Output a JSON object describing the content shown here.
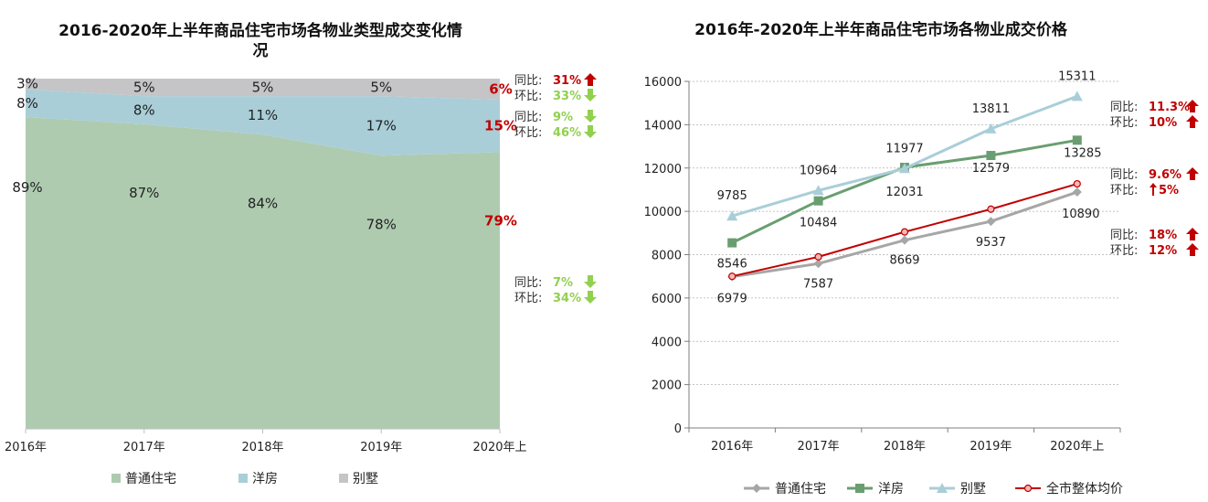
{
  "chart_data": [
    {
      "type": "area",
      "title_line1": "2016-2020年上半年商品住宅市场各物业类型成交变化情",
      "title_line2": "况",
      "categories": [
        "2016年",
        "2017年",
        "2018年",
        "2019年",
        "2020年上"
      ],
      "ylim": [
        0,
        100
      ],
      "series": [
        {
          "name": "普通住宅",
          "values": [
            89,
            87,
            84,
            78,
            79
          ],
          "color": "#aecbb0"
        },
        {
          "name": "洋房",
          "values": [
            8,
            8,
            11,
            17,
            15
          ],
          "color": "#a9ced8"
        },
        {
          "name": "别墅",
          "values": [
            3,
            5,
            5,
            5,
            6
          ],
          "color": "#c5c4c6"
        }
      ],
      "labels": {
        "普通住宅": [
          "89%",
          "87%",
          "84%",
          "78%",
          "79%"
        ],
        "洋房": [
          "8%",
          "8%",
          "11%",
          "17%",
          "15%"
        ],
        "别墅": [
          "3%",
          "5%",
          "5%",
          "5%",
          "6%"
        ]
      },
      "annotations": [
        {
          "series": "别墅",
          "yoy_label": "同比:",
          "yoy_value": "31%",
          "yoy_dir": "up",
          "qoq_label": "环比:",
          "qoq_value": "33%",
          "qoq_dir": "down"
        },
        {
          "series": "洋房",
          "yoy_label": "同比:",
          "yoy_value": "9%",
          "yoy_dir": "down",
          "qoq_label": "环比:",
          "qoq_value": "46%",
          "qoq_dir": "down"
        },
        {
          "series": "普通住宅",
          "yoy_label": "同比:",
          "yoy_value": "7%",
          "yoy_dir": "down",
          "qoq_label": "环比:",
          "qoq_value": "34%",
          "qoq_dir": "down"
        }
      ],
      "legend_position": "bottom",
      "grid": false
    },
    {
      "type": "line",
      "title": "2016年-2020年上半年商品住宅市场各物业成交价格",
      "categories": [
        "2016年",
        "2017年",
        "2018年",
        "2019年",
        "2020年上"
      ],
      "ylim": [
        0,
        16000
      ],
      "yticks": [
        0,
        2000,
        4000,
        6000,
        8000,
        10000,
        12000,
        14000,
        16000
      ],
      "series": [
        {
          "name": "普通住宅",
          "values": [
            6979,
            7587,
            8669,
            9537,
            10890
          ],
          "color": "#a6a6a6",
          "marker": "diamond"
        },
        {
          "name": "洋房",
          "values": [
            8546,
            10484,
            12031,
            12579,
            13285
          ],
          "color": "#6a9e70",
          "marker": "square"
        },
        {
          "name": "别墅",
          "values": [
            9785,
            10964,
            11977,
            13811,
            15311
          ],
          "color": "#a9ced8",
          "marker": "triangle"
        },
        {
          "name": "全市整体均价",
          "values": [
            7000,
            7900,
            9050,
            10100,
            11270
          ],
          "color": "#c00000",
          "marker": "circle"
        }
      ],
      "annotations": [
        {
          "series": "别墅",
          "yoy_label": "同比:",
          "yoy_value": "11.3%",
          "yoy_dir": "up",
          "qoq_label": "环比:",
          "qoq_value": "10%",
          "qoq_dir": "up"
        },
        {
          "series": "洋房",
          "yoy_label": "同比:",
          "yoy_value": "9.6%",
          "yoy_dir": "up",
          "qoq_label": "环比:",
          "qoq_value": "5%",
          "qoq_dir": "up-thin"
        },
        {
          "series": "普通住宅",
          "yoy_label": "同比:",
          "yoy_value": "18%",
          "yoy_dir": "up",
          "qoq_label": "环比:",
          "qoq_value": "12%",
          "qoq_dir": "up"
        }
      ],
      "legend_position": "bottom",
      "grid": true
    }
  ],
  "colors": {
    "up": "#c00000",
    "down": "#92d050"
  }
}
